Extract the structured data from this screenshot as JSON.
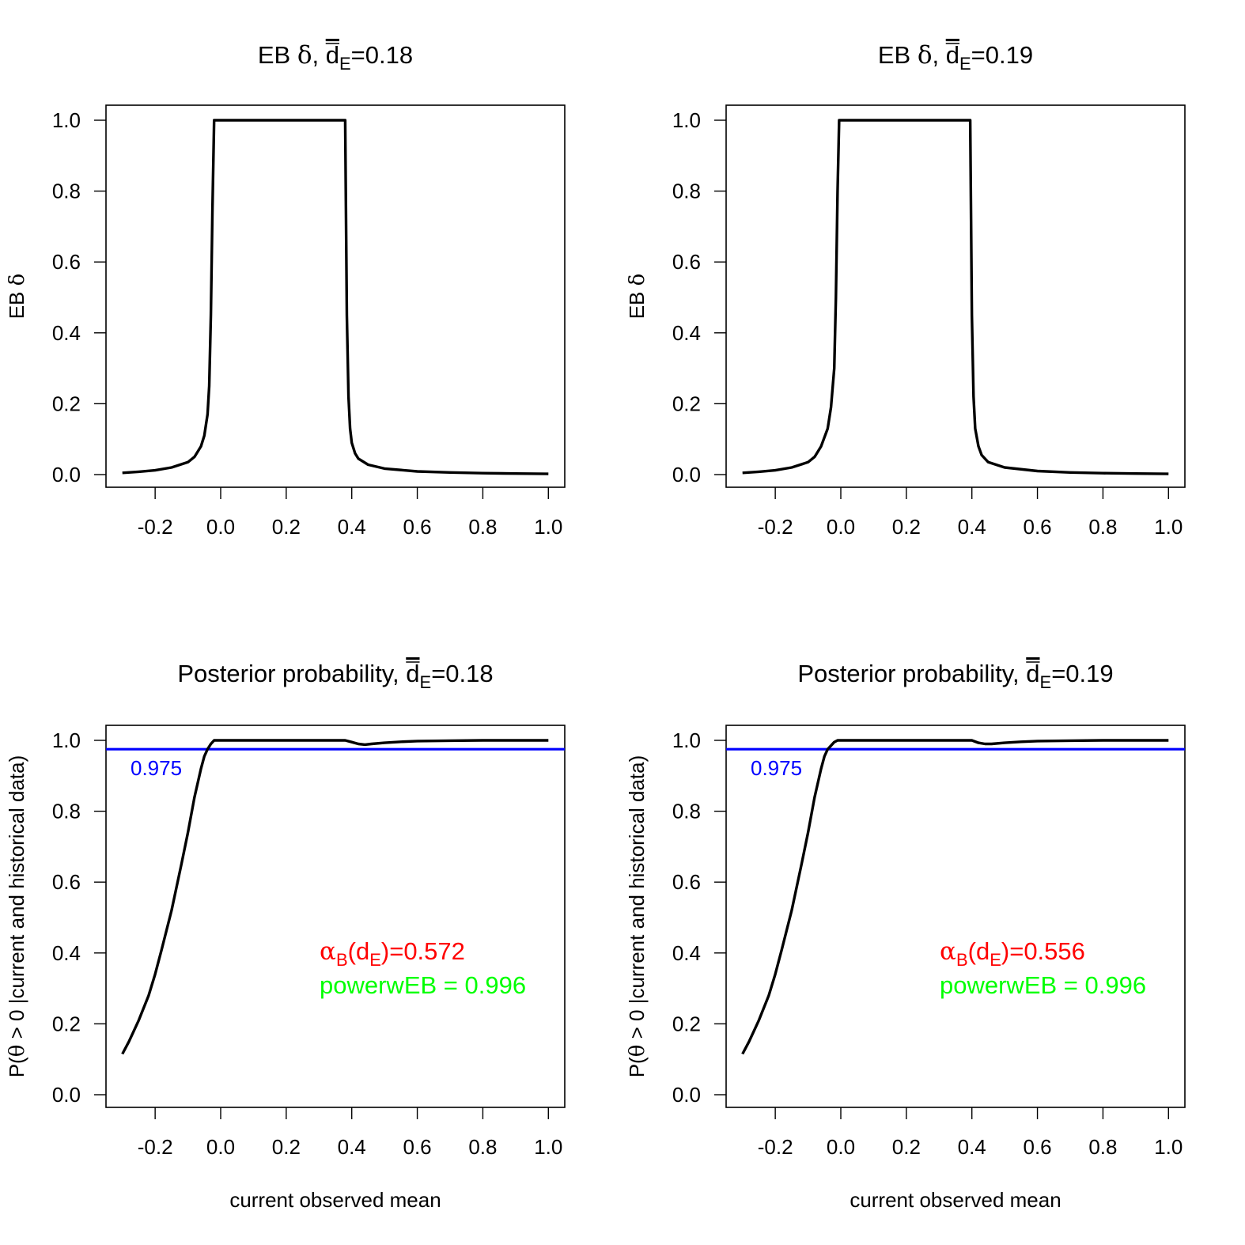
{
  "chart_data": [
    {
      "type": "line",
      "panel": "top-left",
      "title": {
        "prefix": "EB ",
        "symbol": "δ",
        "middle": ", ",
        "var": "d",
        "sub": "E",
        "suffix": "=0.18"
      },
      "ylabel": {
        "prefix": "EB ",
        "symbol": "δ"
      },
      "xlabel": "",
      "xlim": [
        -0.35,
        1.05
      ],
      "ylim": [
        0.0,
        1.0
      ],
      "xticks": [
        "-0.2",
        "0.0",
        "0.2",
        "0.4",
        "0.6",
        "0.8",
        "1.0"
      ],
      "yticks": [
        "0.0",
        "0.2",
        "0.4",
        "0.6",
        "0.8",
        "1.0"
      ],
      "series": [
        {
          "name": "EB delta",
          "color": "#000000",
          "x": [
            -0.3,
            -0.25,
            -0.2,
            -0.15,
            -0.1,
            -0.08,
            -0.06,
            -0.05,
            -0.04,
            -0.035,
            -0.03,
            -0.025,
            -0.02,
            0.38,
            0.385,
            0.39,
            0.395,
            0.4,
            0.41,
            0.42,
            0.45,
            0.5,
            0.6,
            0.7,
            0.8,
            0.9,
            1.0
          ],
          "y": [
            0.005,
            0.008,
            0.012,
            0.02,
            0.035,
            0.05,
            0.08,
            0.11,
            0.17,
            0.25,
            0.45,
            0.75,
            1.0,
            1.0,
            0.45,
            0.22,
            0.13,
            0.09,
            0.06,
            0.045,
            0.028,
            0.017,
            0.009,
            0.006,
            0.004,
            0.003,
            0.002
          ]
        }
      ],
      "hline": null,
      "annotations": []
    },
    {
      "type": "line",
      "panel": "top-right",
      "title": {
        "prefix": "EB ",
        "symbol": "δ",
        "middle": ", ",
        "var": "d",
        "sub": "E",
        "suffix": "=0.19"
      },
      "ylabel": {
        "prefix": "EB ",
        "symbol": "δ"
      },
      "xlabel": "",
      "xlim": [
        -0.35,
        1.05
      ],
      "ylim": [
        0.0,
        1.0
      ],
      "xticks": [
        "-0.2",
        "0.0",
        "0.2",
        "0.4",
        "0.6",
        "0.8",
        "1.0"
      ],
      "yticks": [
        "0.0",
        "0.2",
        "0.4",
        "0.6",
        "0.8",
        "1.0"
      ],
      "series": [
        {
          "name": "EB delta",
          "color": "#000000",
          "x": [
            -0.3,
            -0.25,
            -0.2,
            -0.15,
            -0.1,
            -0.08,
            -0.06,
            -0.04,
            -0.03,
            -0.02,
            -0.015,
            -0.01,
            -0.005,
            0.395,
            0.4,
            0.405,
            0.41,
            0.42,
            0.43,
            0.45,
            0.5,
            0.6,
            0.7,
            0.8,
            0.9,
            1.0
          ],
          "y": [
            0.005,
            0.008,
            0.012,
            0.02,
            0.035,
            0.05,
            0.08,
            0.13,
            0.19,
            0.3,
            0.5,
            0.8,
            1.0,
            1.0,
            0.45,
            0.22,
            0.13,
            0.08,
            0.055,
            0.035,
            0.02,
            0.01,
            0.006,
            0.004,
            0.003,
            0.002
          ]
        }
      ],
      "hline": null,
      "annotations": []
    },
    {
      "type": "line",
      "panel": "bottom-left",
      "title": {
        "prefix": "Posterior probability",
        "symbol": "",
        "middle": ", ",
        "var": "d",
        "sub": "E",
        "suffix": "=0.18"
      },
      "ylabel": {
        "prefix": "P(",
        "symbol": "θ",
        "suffix": " > 0 |current and historical data)"
      },
      "xlabel": "current observed mean",
      "xlim": [
        -0.35,
        1.05
      ],
      "ylim": [
        0.0,
        1.0
      ],
      "xticks": [
        "-0.2",
        "0.0",
        "0.2",
        "0.4",
        "0.6",
        "0.8",
        "1.0"
      ],
      "yticks": [
        "0.0",
        "0.2",
        "0.4",
        "0.6",
        "0.8",
        "1.0"
      ],
      "series": [
        {
          "name": "posterior probability",
          "color": "#000000",
          "x": [
            -0.3,
            -0.28,
            -0.25,
            -0.22,
            -0.2,
            -0.18,
            -0.15,
            -0.12,
            -0.1,
            -0.08,
            -0.06,
            -0.05,
            -0.04,
            -0.03,
            -0.02,
            0.0,
            0.1,
            0.2,
            0.3,
            0.38,
            0.4,
            0.42,
            0.44,
            0.46,
            0.5,
            0.55,
            0.6,
            0.7,
            0.8,
            0.9,
            1.0
          ],
          "y": [
            0.115,
            0.15,
            0.21,
            0.28,
            0.34,
            0.41,
            0.52,
            0.65,
            0.74,
            0.84,
            0.92,
            0.955,
            0.975,
            0.99,
            1.0,
            1.0,
            1.0,
            1.0,
            1.0,
            1.0,
            0.995,
            0.99,
            0.988,
            0.99,
            0.993,
            0.996,
            0.998,
            0.999,
            1.0,
            1.0,
            1.0
          ]
        }
      ],
      "hline": {
        "y": 0.975,
        "label": "0.975",
        "color": "#0000ff"
      },
      "annotations": [
        {
          "kind": "alpha",
          "symbol": "α",
          "sub1": "B",
          "open": "(",
          "var": "d",
          "sub2": "E",
          "close": ")=0.572",
          "color": "#ff0000"
        },
        {
          "kind": "power",
          "text": "powerwEB =  0.996",
          "color": "#00ff00"
        }
      ]
    },
    {
      "type": "line",
      "panel": "bottom-right",
      "title": {
        "prefix": "Posterior probability",
        "symbol": "",
        "middle": ", ",
        "var": "d",
        "sub": "E",
        "suffix": "=0.19"
      },
      "ylabel": {
        "prefix": "P(",
        "symbol": "θ",
        "suffix": " > 0 |current and historical data)"
      },
      "xlabel": "current observed mean",
      "xlim": [
        -0.35,
        1.05
      ],
      "ylim": [
        0.0,
        1.0
      ],
      "xticks": [
        "-0.2",
        "0.0",
        "0.2",
        "0.4",
        "0.6",
        "0.8",
        "1.0"
      ],
      "yticks": [
        "0.0",
        "0.2",
        "0.4",
        "0.6",
        "0.8",
        "1.0"
      ],
      "series": [
        {
          "name": "posterior probability",
          "color": "#000000",
          "x": [
            -0.3,
            -0.28,
            -0.25,
            -0.22,
            -0.2,
            -0.18,
            -0.15,
            -0.12,
            -0.1,
            -0.08,
            -0.06,
            -0.05,
            -0.04,
            -0.03,
            -0.02,
            -0.01,
            0.0,
            0.1,
            0.2,
            0.3,
            0.4,
            0.42,
            0.44,
            0.46,
            0.5,
            0.55,
            0.6,
            0.7,
            0.8,
            0.9,
            1.0
          ],
          "y": [
            0.115,
            0.15,
            0.21,
            0.28,
            0.34,
            0.41,
            0.52,
            0.65,
            0.74,
            0.84,
            0.92,
            0.955,
            0.975,
            0.985,
            0.995,
            1.0,
            1.0,
            1.0,
            1.0,
            1.0,
            1.0,
            0.993,
            0.99,
            0.99,
            0.993,
            0.996,
            0.998,
            0.999,
            1.0,
            1.0,
            1.0
          ]
        }
      ],
      "hline": {
        "y": 0.975,
        "label": "0.975",
        "color": "#0000ff"
      },
      "annotations": [
        {
          "kind": "alpha",
          "symbol": "α",
          "sub1": "B",
          "open": "(",
          "var": "d",
          "sub2": "E",
          "close": ")=0.556",
          "color": "#ff0000"
        },
        {
          "kind": "power",
          "text": "powerwEB =  0.996",
          "color": "#00ff00"
        }
      ]
    }
  ]
}
